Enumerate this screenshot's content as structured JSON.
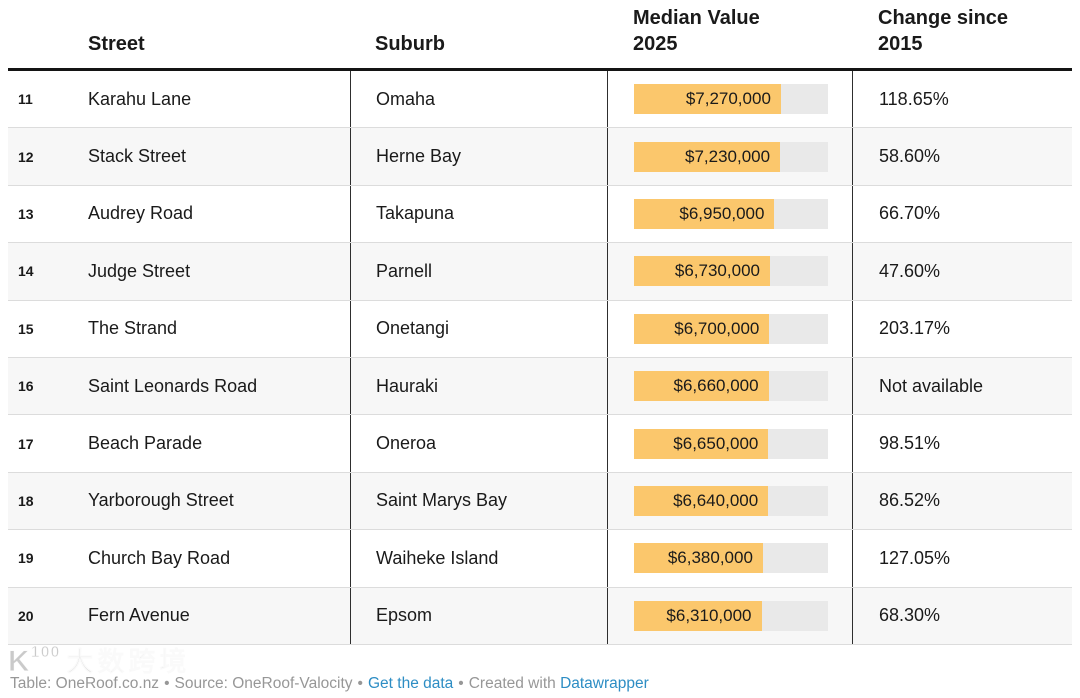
{
  "chart_data": {
    "type": "table",
    "headers": {
      "street": "Street",
      "suburb": "Suburb",
      "median_line1": "Median Value",
      "median_line2": "2025",
      "change_line1": "Change since",
      "change_line2": "2015"
    },
    "bar": {
      "max": 9600000,
      "color": "#fbc76c",
      "track_color": "#e9e9e9"
    },
    "rows": [
      {
        "rank": "11",
        "street": "Karahu Lane",
        "suburb": "Omaha",
        "median_label": "$7,270,000",
        "median_value": 7270000,
        "change": "118.65%"
      },
      {
        "rank": "12",
        "street": "Stack Street",
        "suburb": "Herne Bay",
        "median_label": "$7,230,000",
        "median_value": 7230000,
        "change": "58.60%"
      },
      {
        "rank": "13",
        "street": "Audrey Road",
        "suburb": "Takapuna",
        "median_label": "$6,950,000",
        "median_value": 6950000,
        "change": "66.70%"
      },
      {
        "rank": "14",
        "street": "Judge Street",
        "suburb": "Parnell",
        "median_label": "$6,730,000",
        "median_value": 6730000,
        "change": "47.60%"
      },
      {
        "rank": "15",
        "street": "The Strand",
        "suburb": "Onetangi",
        "median_label": "$6,700,000",
        "median_value": 6700000,
        "change": "203.17%"
      },
      {
        "rank": "16",
        "street": "Saint Leonards Road",
        "suburb": "Hauraki",
        "median_label": "$6,660,000",
        "median_value": 6660000,
        "change": "Not available"
      },
      {
        "rank": "17",
        "street": "Beach Parade",
        "suburb": "Oneroa",
        "median_label": "$6,650,000",
        "median_value": 6650000,
        "change": "98.51%"
      },
      {
        "rank": "18",
        "street": "Yarborough Street",
        "suburb": "Saint Marys Bay",
        "median_label": "$6,640,000",
        "median_value": 6640000,
        "change": "86.52%"
      },
      {
        "rank": "19",
        "street": "Church Bay Road",
        "suburb": "Waiheke Island",
        "median_label": "$6,380,000",
        "median_value": 6380000,
        "change": "127.05%"
      },
      {
        "rank": "20",
        "street": "Fern Avenue",
        "suburb": "Epsom",
        "median_label": "$6,310,000",
        "median_value": 6310000,
        "change": "68.30%"
      }
    ]
  },
  "footer": {
    "table_credit": "Table: OneRoof.co.nz",
    "source": "Source: OneRoof-Valocity",
    "get_data": "Get the data",
    "created_with": "Created with",
    "datawrapper": "Datawrapper",
    "sep": "•"
  },
  "watermark": {
    "logo_k": "K",
    "logo_100": "100",
    "text": "大数跨境"
  }
}
